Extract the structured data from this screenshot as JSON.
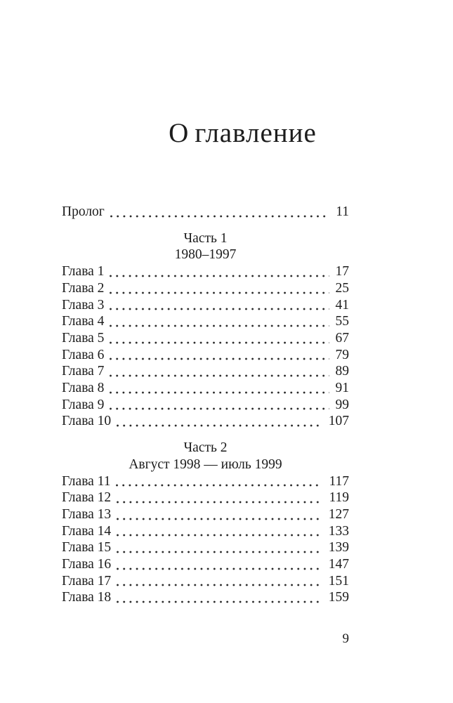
{
  "toc": {
    "title": "Оглавление",
    "folio": "9",
    "text_color": "#1c1c1c",
    "background_color": "#ffffff",
    "prologue": {
      "label": "Пролог",
      "page": "11"
    },
    "sections": [
      {
        "title": "Часть 1",
        "subtitle": "1980–1997",
        "chapters": [
          {
            "label": "Глава 1",
            "page": "17"
          },
          {
            "label": "Глава 2",
            "page": "25"
          },
          {
            "label": "Глава 3",
            "page": "41"
          },
          {
            "label": "Глава 4",
            "page": "55"
          },
          {
            "label": "Глава 5",
            "page": "67"
          },
          {
            "label": "Глава 6",
            "page": "79"
          },
          {
            "label": "Глава 7",
            "page": "89"
          },
          {
            "label": "Глава 8",
            "page": "91"
          },
          {
            "label": "Глава 9",
            "page": "99"
          },
          {
            "label": "Глава 10",
            "page": "107"
          }
        ]
      },
      {
        "title": "Часть 2",
        "subtitle": "Август 1998 — июль 1999",
        "chapters": [
          {
            "label": "Глава 11",
            "page": "117"
          },
          {
            "label": "Глава 12",
            "page": "119"
          },
          {
            "label": "Глава 13",
            "page": "127"
          },
          {
            "label": "Глава 14",
            "page": "133"
          },
          {
            "label": "Глава 15",
            "page": "139"
          },
          {
            "label": "Глава 16",
            "page": "147"
          },
          {
            "label": "Глава 17",
            "page": "151"
          },
          {
            "label": "Глава 18",
            "page": "159"
          }
        ]
      }
    ]
  }
}
